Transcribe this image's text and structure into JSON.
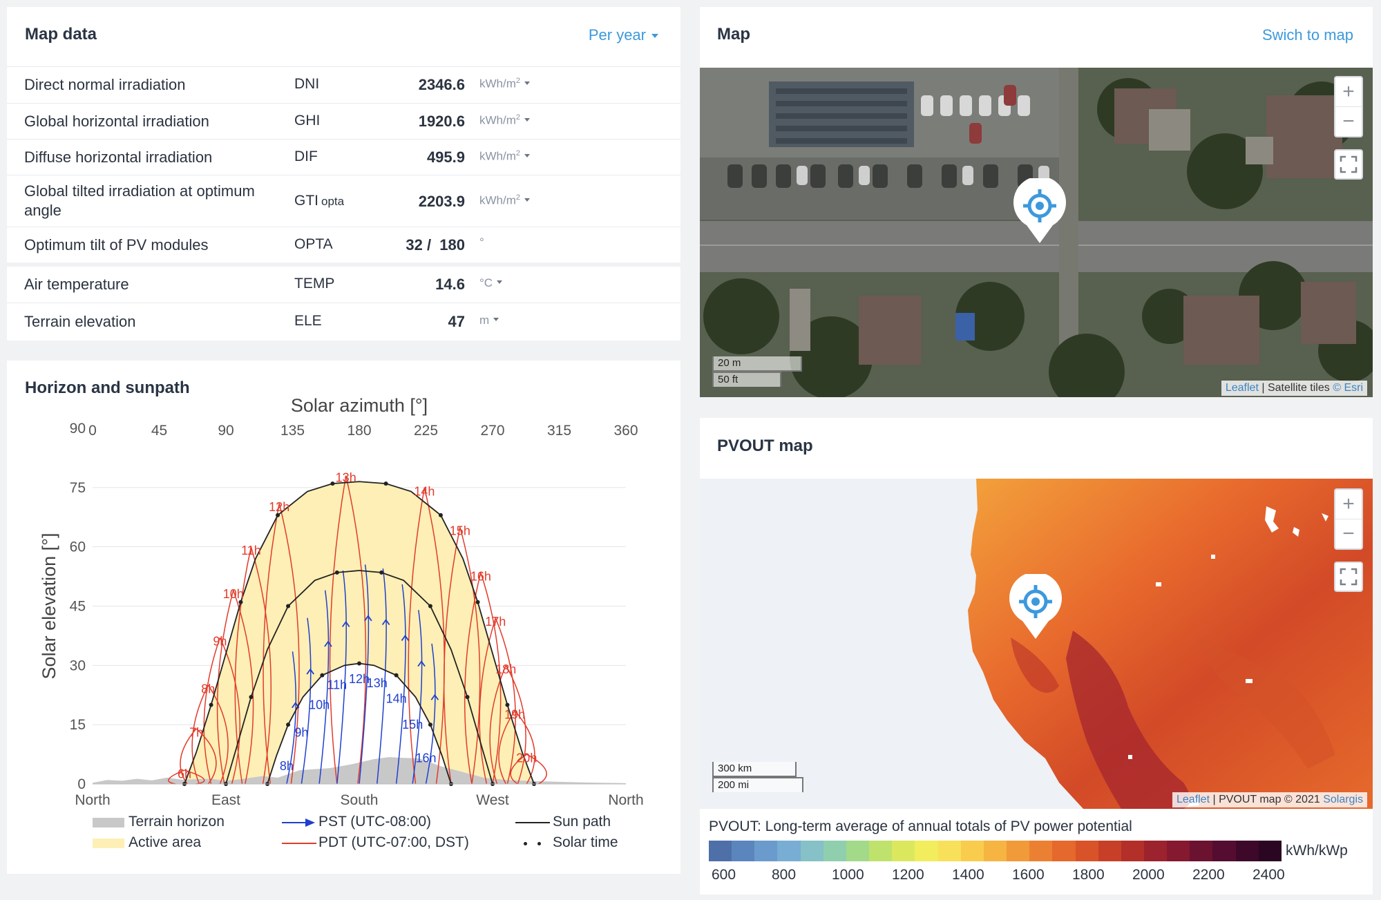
{
  "map_data": {
    "title": "Map data",
    "period_label": "Per year",
    "rows": [
      {
        "name": "Direct normal irradiation",
        "abbr": "DNI",
        "abbr_sub": "",
        "value": "2346.6",
        "unit": "kWh/m",
        "unit_sup": "2"
      },
      {
        "name": "Global horizontal irradiation",
        "abbr": "GHI",
        "abbr_sub": "",
        "value": "1920.6",
        "unit": "kWh/m",
        "unit_sup": "2"
      },
      {
        "name": "Diffuse horizontal irradiation",
        "abbr": "DIF",
        "abbr_sub": "",
        "value": "495.9",
        "unit": "kWh/m",
        "unit_sup": "2"
      },
      {
        "name_line1": "Global tilted irradiation at optimum",
        "name_line2": "angle",
        "abbr": "GTI",
        "abbr_sub": "opta",
        "value": "2203.9",
        "unit": "kWh/m",
        "unit_sup": "2"
      },
      {
        "name": "Optimum tilt of PV modules",
        "abbr": "OPTA",
        "abbr_sub": "",
        "value": "32 /  180",
        "unit": "°",
        "unit_sup": ""
      },
      {
        "name": "Air temperature",
        "abbr": "TEMP",
        "abbr_sub": "",
        "value": "14.6",
        "unit": "°C",
        "unit_sup": ""
      },
      {
        "name": "Terrain elevation",
        "abbr": "ELE",
        "abbr_sub": "",
        "value": "47",
        "unit": "m",
        "unit_sup": ""
      }
    ]
  },
  "map": {
    "title": "Map",
    "switch_label": "Swich to map",
    "zoom_in": "+",
    "zoom_out": "−",
    "scale_metric": "20 m",
    "scale_imperial": "50 ft",
    "attribution_leaflet": "Leaflet",
    "attribution_sep": " | Satellite tiles ",
    "attribution_esri": "© Esri"
  },
  "pvout_map": {
    "title": "PVOUT map",
    "zoom_in": "+",
    "zoom_out": "−",
    "scale_metric": "300 km",
    "scale_imperial": "200 mi",
    "attribution_leaflet": "Leaflet",
    "attribution_sep": " | PVOUT map © 2021 ",
    "attribution_solargis": "Solargis",
    "legend_title": "PVOUT: Long-term average of annual totals of PV power potential",
    "legend_unit": "kWh/kWp",
    "legend_ticks": [
      "600",
      "800",
      "1000",
      "1200",
      "1400",
      "1600",
      "1800",
      "2000",
      "2200",
      "2400"
    ],
    "legend_colors": [
      "#4f6fa8",
      "#5b86bd",
      "#6b9bcc",
      "#78add4",
      "#85c1c6",
      "#8fcfad",
      "#a2da8a",
      "#bfe26d",
      "#dbe85e",
      "#f2ed5d",
      "#f8e05a",
      "#f9cc4e",
      "#f6b443",
      "#f19a3a",
      "#ec8032",
      "#e5682c",
      "#d85327",
      "#c73f27",
      "#b32f2a",
      "#9c222d",
      "#85192f",
      "#6c1231",
      "#540d30",
      "#3d082a",
      "#2a0622"
    ]
  },
  "sunpath": {
    "title": "Horizon and sunpath",
    "legend": {
      "terrain": "Terrain horizon",
      "active": "Active area",
      "pst": "PST (UTC-08:00)",
      "pdt": "PDT (UTC-07:00, DST)",
      "sun_path": "Sun path",
      "solar_time": "Solar time"
    }
  },
  "chart_data": {
    "type": "line",
    "title": "Solar azimuth [°]",
    "xlabel": "",
    "ylabel": "Solar elevation [°]",
    "xlim": [
      0,
      360
    ],
    "ylim": [
      0,
      90
    ],
    "x_ticks": [
      0,
      45,
      90,
      135,
      180,
      225,
      270,
      315,
      360
    ],
    "y_ticks": [
      0,
      15,
      30,
      45,
      60,
      75,
      90
    ],
    "compass_labels": [
      {
        "az": 0,
        "label": "North"
      },
      {
        "az": 90,
        "label": "East"
      },
      {
        "az": 180,
        "label": "South"
      },
      {
        "az": 270,
        "label": "West"
      },
      {
        "az": 360,
        "label": "North"
      }
    ],
    "colors": {
      "pst": "#1f3fcf",
      "pdt": "#e23b2a",
      "sun_path": "#222222",
      "active": "#fdefb5",
      "terrain": "#c8c8c8"
    },
    "terrain_horizon": [
      [
        0,
        0.3
      ],
      [
        10,
        1
      ],
      [
        20,
        0.8
      ],
      [
        30,
        1.3
      ],
      [
        40,
        0.9
      ],
      [
        50,
        1.6
      ],
      [
        60,
        1.1
      ],
      [
        80,
        1.3
      ],
      [
        90,
        0.8
      ],
      [
        100,
        1.2
      ],
      [
        115,
        2
      ],
      [
        125,
        1.6
      ],
      [
        140,
        3.5
      ],
      [
        160,
        4
      ],
      [
        175,
        5
      ],
      [
        190,
        6.3
      ],
      [
        200,
        6.8
      ],
      [
        210,
        6.6
      ],
      [
        220,
        6.5
      ],
      [
        235,
        4.5
      ],
      [
        250,
        3
      ],
      [
        265,
        1.5
      ],
      [
        280,
        1
      ],
      [
        300,
        0.7
      ],
      [
        330,
        0.4
      ],
      [
        360,
        0.2
      ]
    ],
    "series": [
      {
        "name": "Sun path",
        "points": [
          [
            62,
            0
          ],
          [
            70,
            8
          ],
          [
            80,
            20
          ],
          [
            90,
            33
          ],
          [
            100,
            46
          ],
          [
            110,
            57
          ],
          [
            125,
            68
          ],
          [
            145,
            74
          ],
          [
            162,
            76
          ],
          [
            180,
            76.5
          ],
          [
            198,
            76
          ],
          [
            215,
            74
          ],
          [
            235,
            68
          ],
          [
            250,
            57
          ],
          [
            260,
            46
          ],
          [
            270,
            33
          ],
          [
            280,
            20
          ],
          [
            290,
            8
          ],
          [
            298,
            0
          ]
        ]
      },
      {
        "name": "Sun path",
        "points": [
          [
            90,
            0
          ],
          [
            97,
            9
          ],
          [
            107,
            22
          ],
          [
            118,
            34
          ],
          [
            132,
            45
          ],
          [
            150,
            51.5
          ],
          [
            165,
            53.5
          ],
          [
            180,
            54
          ],
          [
            195,
            53.5
          ],
          [
            210,
            51.5
          ],
          [
            228,
            45
          ],
          [
            242,
            34
          ],
          [
            253,
            22
          ],
          [
            263,
            9
          ],
          [
            270,
            0
          ]
        ]
      },
      {
        "name": "Sun path",
        "points": [
          [
            118,
            0
          ],
          [
            124,
            7
          ],
          [
            132,
            15
          ],
          [
            142,
            22
          ],
          [
            155,
            27.5
          ],
          [
            170,
            30
          ],
          [
            180,
            30.5
          ],
          [
            190,
            30
          ],
          [
            205,
            27.5
          ],
          [
            218,
            22
          ],
          [
            228,
            15
          ],
          [
            236,
            7
          ],
          [
            242,
            0
          ]
        ]
      }
    ],
    "hour_labels": [
      {
        "label": "6h",
        "az": 62,
        "el": 1.5,
        "tz": "pdt"
      },
      {
        "label": "7h",
        "az": 70,
        "el": 12,
        "tz": "pdt"
      },
      {
        "label": "8h",
        "az": 78,
        "el": 23,
        "tz": "pdt"
      },
      {
        "label": "9h",
        "az": 86,
        "el": 35,
        "tz": "pdt"
      },
      {
        "label": "10h",
        "az": 95,
        "el": 47,
        "tz": "pdt"
      },
      {
        "label": "11h",
        "az": 107,
        "el": 58,
        "tz": "pdt"
      },
      {
        "label": "12h",
        "az": 126,
        "el": 69,
        "tz": "pdt"
      },
      {
        "label": "13h",
        "az": 171,
        "el": 76.5,
        "tz": "pdt"
      },
      {
        "label": "14h",
        "az": 224,
        "el": 73,
        "tz": "pdt"
      },
      {
        "label": "15h",
        "az": 248,
        "el": 63,
        "tz": "pdt"
      },
      {
        "label": "16h",
        "az": 262,
        "el": 51.5,
        "tz": "pdt"
      },
      {
        "label": "17h",
        "az": 272,
        "el": 40,
        "tz": "pdt"
      },
      {
        "label": "18h",
        "az": 279,
        "el": 28,
        "tz": "pdt"
      },
      {
        "label": "19h",
        "az": 285,
        "el": 16.5,
        "tz": "pdt"
      },
      {
        "label": "20h",
        "az": 293,
        "el": 5.5,
        "tz": "pdt"
      },
      {
        "label": "8h",
        "az": 131,
        "el": 3.5,
        "tz": "pst"
      },
      {
        "label": "9h",
        "az": 141,
        "el": 12,
        "tz": "pst"
      },
      {
        "label": "10h",
        "az": 153,
        "el": 19,
        "tz": "pst"
      },
      {
        "label": "11h",
        "az": 165,
        "el": 24,
        "tz": "pst"
      },
      {
        "label": "12h",
        "az": 180,
        "el": 25.5,
        "tz": "pst"
      },
      {
        "label": "13h",
        "az": 192,
        "el": 24.5,
        "tz": "pst"
      },
      {
        "label": "14h",
        "az": 205,
        "el": 20.5,
        "tz": "pst"
      },
      {
        "label": "15h",
        "az": 216,
        "el": 14,
        "tz": "pst"
      },
      {
        "label": "16h",
        "az": 225,
        "el": 5.5,
        "tz": "pst"
      }
    ]
  }
}
